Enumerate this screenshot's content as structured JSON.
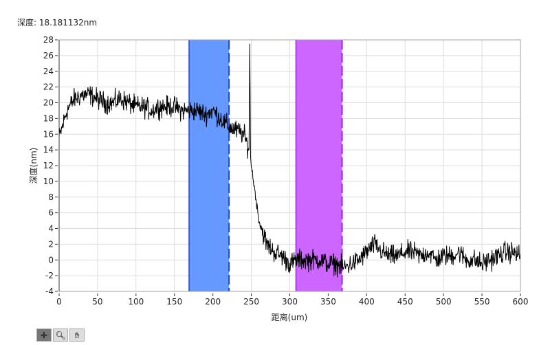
{
  "readout": {
    "label": "深度:",
    "value": "18.181132nm"
  },
  "toolbar": [
    {
      "name": "cursor-tool",
      "icon": "crosshair-icon",
      "active": true
    },
    {
      "name": "zoom-tool",
      "icon": "magnifier-icon",
      "active": false
    },
    {
      "name": "pan-tool",
      "icon": "hand-icon",
      "active": false
    }
  ],
  "chart_data": {
    "type": "line",
    "xlabel": "距离(um)",
    "ylabel": "深度(nm)",
    "xlim": [
      0,
      600
    ],
    "ylim": [
      -4,
      28
    ],
    "xticks": [
      0,
      50,
      100,
      150,
      200,
      250,
      300,
      350,
      400,
      450,
      500,
      550,
      600
    ],
    "yticks": [
      -4,
      -2,
      0,
      2,
      4,
      6,
      8,
      10,
      12,
      14,
      16,
      18,
      20,
      22,
      24,
      26,
      28
    ],
    "grid": true,
    "line_color": "#000000",
    "regions": [
      {
        "x": [
          169,
          221
        ],
        "color": "#6699ff",
        "edge": "#2244cc"
      },
      {
        "x": [
          308,
          368
        ],
        "color": "#cc66ff",
        "edge": "#9922dd"
      }
    ],
    "series": {
      "x": [
        0,
        10,
        20,
        30,
        40,
        50,
        60,
        70,
        80,
        90,
        100,
        110,
        120,
        130,
        140,
        150,
        160,
        170,
        180,
        190,
        200,
        210,
        220,
        230,
        240,
        247,
        248,
        249,
        250,
        260,
        270,
        280,
        290,
        300,
        310,
        320,
        330,
        340,
        350,
        360,
        370,
        380,
        390,
        400,
        410,
        420,
        430,
        440,
        450,
        460,
        470,
        480,
        490,
        500,
        510,
        520,
        530,
        540,
        550,
        560,
        570,
        580,
        590,
        600
      ],
      "y": [
        15.5,
        19,
        20.5,
        21,
        21,
        20.5,
        20,
        20,
        20.5,
        20,
        19.5,
        19.5,
        19,
        19.5,
        19.5,
        19.5,
        19,
        19,
        19,
        18.5,
        19,
        18,
        17,
        16.5,
        16,
        14,
        27.5,
        13,
        12,
        5,
        2,
        1,
        0.5,
        -0.5,
        0,
        0,
        0,
        0,
        -0.5,
        -0.5,
        -1,
        -0.5,
        0,
        1,
        2,
        1,
        0.5,
        0.5,
        1,
        1,
        0.5,
        1,
        0,
        0.5,
        0.5,
        1,
        0,
        0,
        -0.5,
        0,
        0.5,
        1,
        1,
        0.5
      ]
    }
  }
}
